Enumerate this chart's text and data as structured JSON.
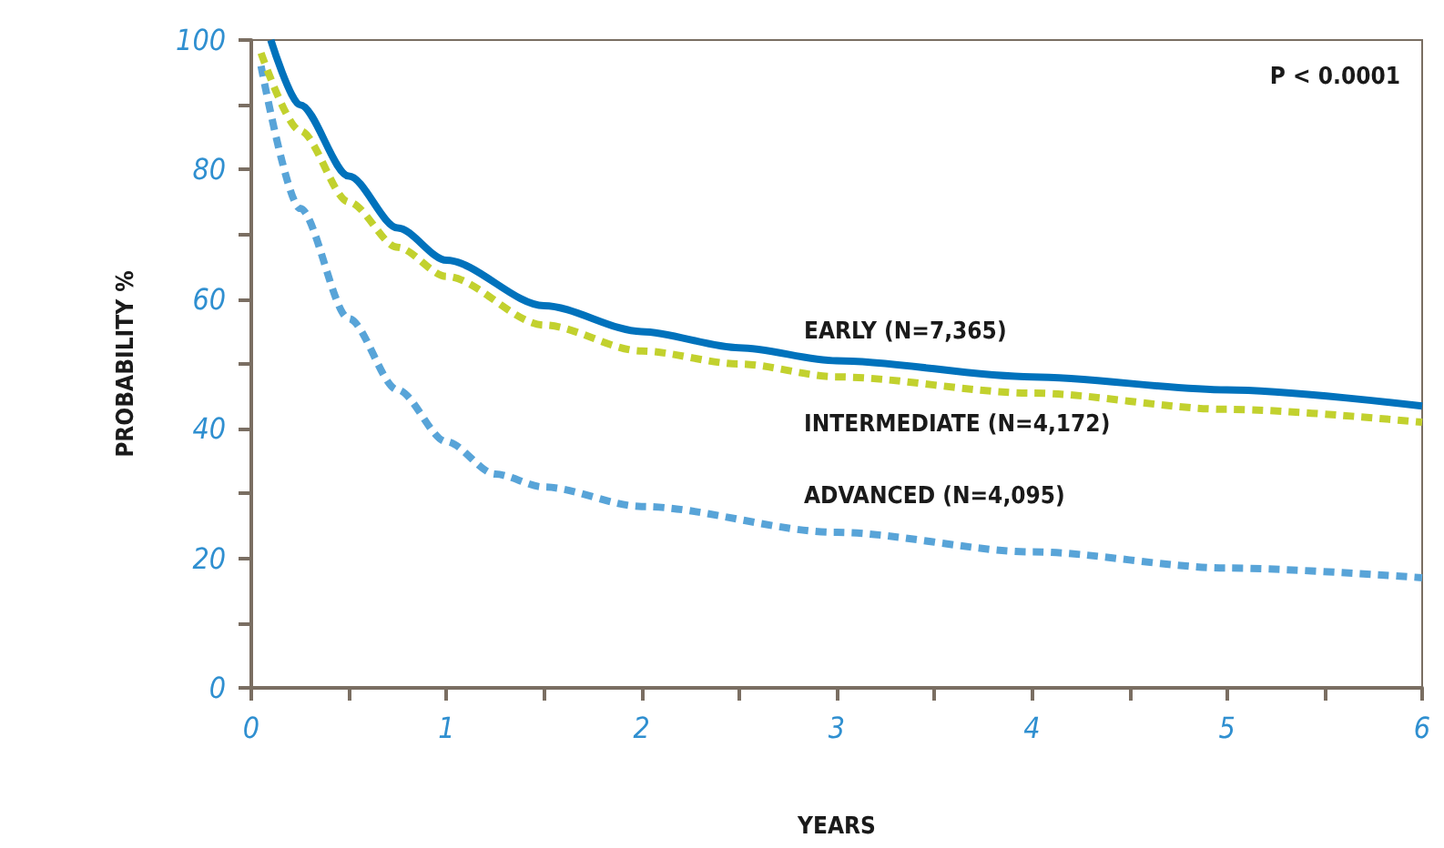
{
  "chart_data": {
    "type": "line",
    "xlabel": "YEARS",
    "ylabel": "PROBABILITY %",
    "annotations": [
      "P < 0.0001"
    ],
    "xlim": [
      0,
      6
    ],
    "xticks": [
      0,
      {
        "value": 0.5,
        "label": null
      },
      1,
      {
        "value": 1.5,
        "label": null
      },
      2,
      {
        "value": 2.5,
        "label": null
      },
      3,
      {
        "value": 3.5,
        "label": null
      },
      4,
      {
        "value": 4.5,
        "label": null
      },
      5,
      {
        "value": 5.5,
        "label": null
      },
      6
    ],
    "ylim": [
      0,
      100
    ],
    "yticks": [
      0,
      {
        "value": 10,
        "label": null
      },
      20,
      {
        "value": 30,
        "label": null
      },
      40,
      {
        "value": 50,
        "label": null
      },
      60,
      {
        "value": 70,
        "label": null
      },
      80,
      {
        "value": 90,
        "label": null
      },
      100
    ],
    "grid": false,
    "legend": false,
    "marker": "none",
    "series": [
      {
        "name": "EARLY (N=7,365)",
        "color": "#0072bc",
        "line_style": "solid",
        "x": [
          0.1,
          0.25,
          0.5,
          0.75,
          1,
          1.5,
          2,
          2.5,
          3,
          4,
          5,
          6
        ],
        "values": [
          100,
          90,
          79,
          71,
          66,
          59,
          55,
          52.5,
          50.5,
          48,
          46,
          43.5
        ]
      },
      {
        "name": "INTERMEDIATE (N=4,172)",
        "color": "#c2d12e",
        "line_style": "dashed",
        "x": [
          0.05,
          0.25,
          0.5,
          0.75,
          1,
          1.5,
          2,
          2.5,
          3,
          4,
          5,
          6
        ],
        "values": [
          98,
          86,
          75,
          68,
          63.5,
          56,
          52,
          50,
          48,
          45.5,
          43,
          41
        ]
      },
      {
        "name": "ADVANCED (N=4,095)",
        "color": "#58a4d8",
        "line_style": "dashed",
        "x": [
          0.05,
          0.25,
          0.5,
          0.75,
          1,
          1.25,
          1.5,
          2,
          3,
          4,
          5,
          6
        ],
        "values": [
          96,
          74,
          57,
          46,
          38,
          33,
          31,
          28,
          24,
          21,
          18.5,
          17
        ]
      }
    ]
  }
}
